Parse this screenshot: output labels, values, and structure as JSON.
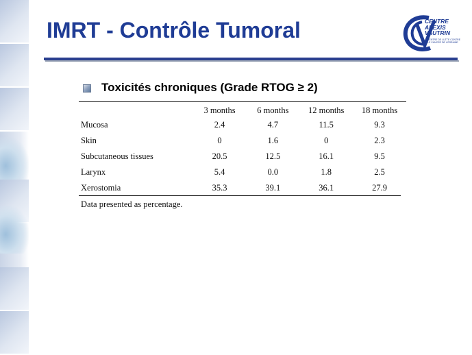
{
  "slide": {
    "title": "IMRT - Contrôle Tumoral",
    "logo": {
      "line1": "CENTRE",
      "line2": "ALEXIS",
      "line3": "VAUTRIN",
      "tagline": "CENTRE DE LUTTE CONTRE LE CANCER DE LORRAINE"
    },
    "bullet": "Toxicités chroniques (Grade RTOG ≥ 2)"
  },
  "table": {
    "columns": [
      "3 months",
      "6 months",
      "12 months",
      "18 months"
    ],
    "rows": [
      {
        "label": "Mucosa",
        "values": [
          "2.4",
          "4.7",
          "11.5",
          "9.3"
        ]
      },
      {
        "label": "Skin",
        "values": [
          "0",
          "1.6",
          "0",
          "2.3"
        ]
      },
      {
        "label": "Subcutaneous tissues",
        "values": [
          "20.5",
          "12.5",
          "16.1",
          "9.5"
        ]
      },
      {
        "label": "Larynx",
        "values": [
          "5.4",
          "0.0",
          "1.8",
          "2.5"
        ]
      },
      {
        "label": "Xerostomia",
        "values": [
          "35.3",
          "39.1",
          "36.1",
          "27.9"
        ]
      }
    ],
    "note": "Data presented as percentage."
  },
  "colors": {
    "title": "#1f3c95",
    "rule": "#2a3f8f"
  }
}
